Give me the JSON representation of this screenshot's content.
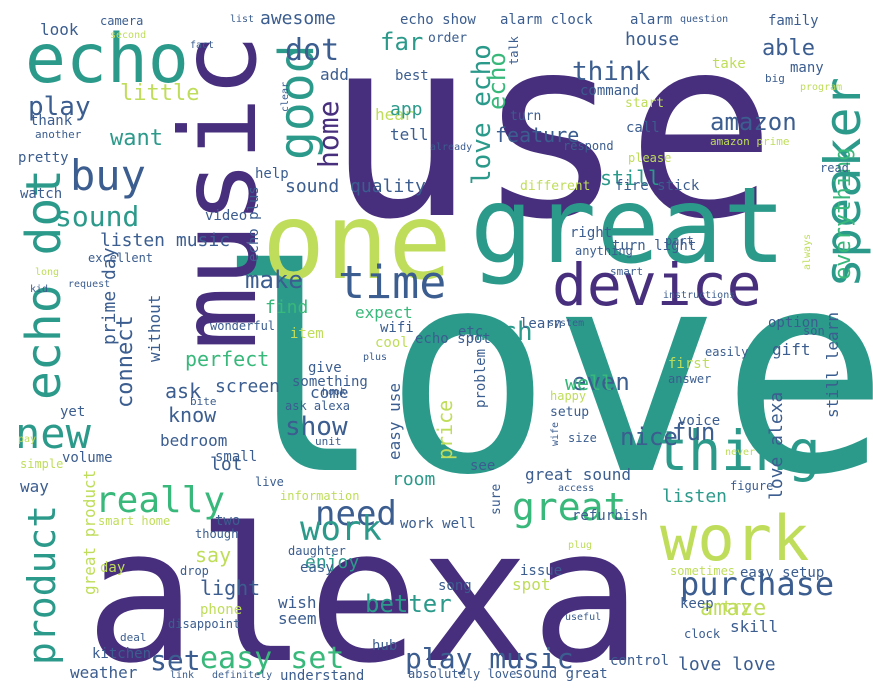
{
  "palette": {
    "purple": "#472f7d",
    "teal": "#2c9a8b",
    "green": "#38b87a",
    "lime": "#bfdd5a",
    "blue": "#3b5d8f"
  },
  "words": [
    {
      "text": "use",
      "color": "#472f7d"
    },
    {
      "text": "love",
      "color": "#2c9a8b"
    },
    {
      "text": "alexa",
      "color": "#472f7d"
    },
    {
      "text": "great",
      "color": "#2c9a8b"
    },
    {
      "text": "one",
      "color": "#bfdd5a"
    },
    {
      "text": "music",
      "color": "#472f7d"
    },
    {
      "text": "echo",
      "color": "#2c9a8b"
    },
    {
      "text": "work",
      "color": "#bfdd5a"
    },
    {
      "text": "device",
      "color": "#472f7d"
    },
    {
      "text": "thing",
      "color": "#2c9a8b"
    },
    {
      "text": "speaker",
      "color": "#2c9a8b"
    },
    {
      "text": "echo dot",
      "color": "#2c9a8b"
    },
    {
      "text": "good",
      "color": "#2c9a8b"
    },
    {
      "text": "buy",
      "color": "#3b5d8f"
    },
    {
      "text": "time",
      "color": "#3b5d8f"
    },
    {
      "text": "new",
      "color": "#2c9a8b"
    },
    {
      "text": "product",
      "color": "#2c9a8b"
    },
    {
      "text": "really",
      "color": "#38b87a"
    },
    {
      "text": "great",
      "color": "#38b87a"
    },
    {
      "text": "need",
      "color": "#3b5d8f"
    },
    {
      "text": "purchase",
      "color": "#3b5d8f"
    },
    {
      "text": "work",
      "color": "#2c9a8b"
    },
    {
      "text": "play music",
      "color": "#3b5d8f"
    },
    {
      "text": "easy set",
      "color": "#38b87a"
    },
    {
      "text": "set",
      "color": "#3b5d8f"
    },
    {
      "text": "dot",
      "color": "#3b5d8f"
    },
    {
      "text": "home",
      "color": "#472f7d"
    },
    {
      "text": "sound",
      "color": "#2c9a8b"
    },
    {
      "text": "play",
      "color": "#3b5d8f"
    },
    {
      "text": "think",
      "color": "#3b5d8f"
    },
    {
      "text": "amazon",
      "color": "#3b5d8f"
    },
    {
      "text": "love echo",
      "color": "#2c9a8b"
    },
    {
      "text": "make",
      "color": "#3b5d8f"
    },
    {
      "text": "connect",
      "color": "#3b5d8f"
    },
    {
      "text": "much",
      "color": "#2c9a8b"
    },
    {
      "text": "show",
      "color": "#3b5d8f"
    },
    {
      "text": "better",
      "color": "#2c9a8b"
    },
    {
      "text": "even",
      "color": "#3b5d8f"
    },
    {
      "text": "nice",
      "color": "#3b5d8f"
    },
    {
      "text": "fun",
      "color": "#3b5d8f"
    },
    {
      "text": "everything",
      "color": "#38b87a"
    },
    {
      "text": "far",
      "color": "#2c9a8b"
    },
    {
      "text": "able",
      "color": "#3b5d8f"
    },
    {
      "text": "little",
      "color": "#bfdd5a"
    },
    {
      "text": "want",
      "color": "#2c9a8b"
    },
    {
      "text": "feature",
      "color": "#3b5d8f"
    },
    {
      "text": "echo",
      "color": "#38b87a"
    },
    {
      "text": "prime day",
      "color": "#3b5d8f"
    },
    {
      "text": "listen music",
      "color": "#3b5d8f"
    },
    {
      "text": "perfect",
      "color": "#38b87a"
    },
    {
      "text": "ask",
      "color": "#3b5d8f"
    },
    {
      "text": "know",
      "color": "#3b5d8f"
    },
    {
      "text": "say",
      "color": "#bfdd5a"
    },
    {
      "text": "light",
      "color": "#3b5d8f"
    },
    {
      "text": "enjoy",
      "color": "#2c9a8b"
    },
    {
      "text": "amaze",
      "color": "#bfdd5a"
    },
    {
      "text": "price",
      "color": "#bfdd5a"
    },
    {
      "text": "well",
      "color": "#38b87a"
    },
    {
      "text": "still",
      "color": "#2c9a8b"
    },
    {
      "text": "sound quality",
      "color": "#3b5d8f"
    },
    {
      "text": "screen",
      "color": "#3b5d8f"
    },
    {
      "text": "find",
      "color": "#38b87a"
    },
    {
      "text": "awesome",
      "color": "#3b5d8f"
    },
    {
      "text": "house",
      "color": "#3b5d8f"
    },
    {
      "text": "love alexa",
      "color": "#3b5d8f"
    },
    {
      "text": "listen",
      "color": "#2c9a8b"
    },
    {
      "text": "lot",
      "color": "#3b5d8f"
    },
    {
      "text": "room",
      "color": "#2c9a8b"
    },
    {
      "text": "great product",
      "color": "#bfdd5a"
    },
    {
      "text": "echo show",
      "color": "#3b5d8f"
    },
    {
      "text": "alarm clock",
      "color": "#3b5d8f"
    },
    {
      "text": "alarm",
      "color": "#3b5d8f"
    },
    {
      "text": "look",
      "color": "#3b5d8f"
    },
    {
      "text": "camera",
      "color": "#3b5d8f"
    },
    {
      "text": "list",
      "color": "#3b5d8f"
    },
    {
      "text": "question",
      "color": "#3b5d8f"
    },
    {
      "text": "family",
      "color": "#3b5d8f"
    },
    {
      "text": "second",
      "color": "#bfdd5a"
    },
    {
      "text": "fact",
      "color": "#3b5d8f"
    },
    {
      "text": "order",
      "color": "#3b5d8f"
    },
    {
      "text": "add",
      "color": "#3b5d8f"
    },
    {
      "text": "best",
      "color": "#3b5d8f"
    },
    {
      "text": "talk",
      "color": "#3b5d8f"
    },
    {
      "text": "take",
      "color": "#bfdd5a"
    },
    {
      "text": "many",
      "color": "#3b5d8f"
    },
    {
      "text": "big",
      "color": "#3b5d8f"
    },
    {
      "text": "thank",
      "color": "#3b5d8f"
    },
    {
      "text": "hear",
      "color": "#bfdd5a"
    },
    {
      "text": "command",
      "color": "#3b5d8f"
    },
    {
      "text": "start",
      "color": "#bfdd5a"
    },
    {
      "text": "program",
      "color": "#bfdd5a"
    },
    {
      "text": "app",
      "color": "#2c9a8b"
    },
    {
      "text": "tell",
      "color": "#3b5d8f"
    },
    {
      "text": "turn",
      "color": "#3b5d8f"
    },
    {
      "text": "call",
      "color": "#3b5d8f"
    },
    {
      "text": "amazon prime",
      "color": "#bfdd5a"
    },
    {
      "text": "another",
      "color": "#3b5d8f"
    },
    {
      "text": "clear",
      "color": "#3b5d8f"
    },
    {
      "text": "already",
      "color": "#3b5d8f"
    },
    {
      "text": "respond",
      "color": "#3b5d8f"
    },
    {
      "text": "please",
      "color": "#bfdd5a"
    },
    {
      "text": "pretty",
      "color": "#3b5d8f"
    },
    {
      "text": "help",
      "color": "#3b5d8f"
    },
    {
      "text": "different",
      "color": "#bfdd5a"
    },
    {
      "text": "fire stick",
      "color": "#3b5d8f"
    },
    {
      "text": "read",
      "color": "#3b5d8f"
    },
    {
      "text": "watch",
      "color": "#3b5d8f"
    },
    {
      "text": "video",
      "color": "#3b5d8f"
    },
    {
      "text": "echo plus",
      "color": "#3b5d8f"
    },
    {
      "text": "right",
      "color": "#3b5d8f"
    },
    {
      "text": "turn light",
      "color": "#3b5d8f"
    },
    {
      "text": "part",
      "color": "#3b5d8f"
    },
    {
      "text": "anything",
      "color": "#3b5d8f"
    },
    {
      "text": "always",
      "color": "#bfdd5a"
    },
    {
      "text": "excellent",
      "color": "#3b5d8f"
    },
    {
      "text": "long",
      "color": "#bfdd5a"
    },
    {
      "text": "smart",
      "color": "#3b5d8f"
    },
    {
      "text": "instructions",
      "color": "#3b5d8f"
    },
    {
      "text": "kid",
      "color": "#3b5d8f"
    },
    {
      "text": "request",
      "color": "#3b5d8f"
    },
    {
      "text": "without",
      "color": "#3b5d8f"
    },
    {
      "text": "item",
      "color": "#bfdd5a"
    },
    {
      "text": "expect",
      "color": "#38b87a"
    },
    {
      "text": "wifi",
      "color": "#3b5d8f"
    },
    {
      "text": "learn",
      "color": "#3b5d8f"
    },
    {
      "text": "system",
      "color": "#3b5d8f"
    },
    {
      "text": "still learn",
      "color": "#3b5d8f"
    },
    {
      "text": "option",
      "color": "#3b5d8f"
    },
    {
      "text": "gift",
      "color": "#3b5d8f"
    },
    {
      "text": "son",
      "color": "#3b5d8f"
    },
    {
      "text": "wonderful",
      "color": "#3b5d8f"
    },
    {
      "text": "cool",
      "color": "#bfdd5a"
    },
    {
      "text": "plus",
      "color": "#3b5d8f"
    },
    {
      "text": "echo spot",
      "color": "#3b5d8f"
    },
    {
      "text": "etc",
      "color": "#3b5d8f"
    },
    {
      "text": "easily",
      "color": "#3b5d8f"
    },
    {
      "text": "give",
      "color": "#3b5d8f"
    },
    {
      "text": "something",
      "color": "#3b5d8f"
    },
    {
      "text": "problem",
      "color": "#3b5d8f"
    },
    {
      "text": "first",
      "color": "#bfdd5a"
    },
    {
      "text": "answer",
      "color": "#3b5d8f"
    },
    {
      "text": "come",
      "color": "#3b5d8f"
    },
    {
      "text": "hook",
      "color": "#3b5d8f"
    },
    {
      "text": "bite",
      "color": "#3b5d8f"
    },
    {
      "text": "ask alexa",
      "color": "#3b5d8f"
    },
    {
      "text": "happy",
      "color": "#bfdd5a"
    },
    {
      "text": "setup",
      "color": "#3b5d8f"
    },
    {
      "text": "yet",
      "color": "#3b5d8f"
    },
    {
      "text": "easy use",
      "color": "#3b5d8f"
    },
    {
      "text": "voice",
      "color": "#3b5d8f"
    },
    {
      "text": "bedroom",
      "color": "#3b5d8f"
    },
    {
      "text": "pay",
      "color": "#bfdd5a"
    },
    {
      "text": "small",
      "color": "#3b5d8f"
    },
    {
      "text": "unit",
      "color": "#3b5d8f"
    },
    {
      "text": "wife",
      "color": "#3b5d8f"
    },
    {
      "text": "size",
      "color": "#3b5d8f"
    },
    {
      "text": "never",
      "color": "#bfdd5a"
    },
    {
      "text": "simple",
      "color": "#bfdd5a"
    },
    {
      "text": "volume",
      "color": "#3b5d8f"
    },
    {
      "text": "see",
      "color": "#3b5d8f"
    },
    {
      "text": "great sound",
      "color": "#3b5d8f"
    },
    {
      "text": "way",
      "color": "#3b5d8f"
    },
    {
      "text": "live",
      "color": "#3b5d8f"
    },
    {
      "text": "access",
      "color": "#3b5d8f"
    },
    {
      "text": "figure",
      "color": "#3b5d8f"
    },
    {
      "text": "information",
      "color": "#bfdd5a"
    },
    {
      "text": "work well",
      "color": "#3b5d8f"
    },
    {
      "text": "sure",
      "color": "#3b5d8f"
    },
    {
      "text": "refurbish",
      "color": "#3b5d8f"
    },
    {
      "text": "smart home",
      "color": "#bfdd5a"
    },
    {
      "text": "two",
      "color": "#3b5d8f"
    },
    {
      "text": "though",
      "color": "#3b5d8f"
    },
    {
      "text": "daughter",
      "color": "#3b5d8f"
    },
    {
      "text": "plug",
      "color": "#bfdd5a"
    },
    {
      "text": "day",
      "color": "#bfdd5a"
    },
    {
      "text": "drop",
      "color": "#3b5d8f"
    },
    {
      "text": "easy",
      "color": "#3b5d8f"
    },
    {
      "text": "issue",
      "color": "#3b5d8f"
    },
    {
      "text": "spot",
      "color": "#bfdd5a"
    },
    {
      "text": "song",
      "color": "#3b5d8f"
    },
    {
      "text": "sometimes",
      "color": "#bfdd5a"
    },
    {
      "text": "easy setup",
      "color": "#3b5d8f"
    },
    {
      "text": "wish",
      "color": "#3b5d8f"
    },
    {
      "text": "seem",
      "color": "#3b5d8f"
    },
    {
      "text": "keep",
      "color": "#3b5d8f"
    },
    {
      "text": "try",
      "color": "#bfdd5a"
    },
    {
      "text": "skill",
      "color": "#3b5d8f"
    },
    {
      "text": "clock",
      "color": "#3b5d8f"
    },
    {
      "text": "useful",
      "color": "#3b5d8f"
    },
    {
      "text": "phone",
      "color": "#bfdd5a"
    },
    {
      "text": "disappoint",
      "color": "#3b5d8f"
    },
    {
      "text": "deal",
      "color": "#3b5d8f"
    },
    {
      "text": "kitchen",
      "color": "#3b5d8f"
    },
    {
      "text": "hub",
      "color": "#3b5d8f"
    },
    {
      "text": "control",
      "color": "#3b5d8f"
    },
    {
      "text": "weather",
      "color": "#3b5d8f"
    },
    {
      "text": "link",
      "color": "#3b5d8f"
    },
    {
      "text": "definitely",
      "color": "#3b5d8f"
    },
    {
      "text": "understand",
      "color": "#3b5d8f"
    },
    {
      "text": "absolutely love",
      "color": "#3b5d8f"
    },
    {
      "text": "sound great",
      "color": "#3b5d8f"
    },
    {
      "text": "love love",
      "color": "#3b5d8f"
    }
  ]
}
